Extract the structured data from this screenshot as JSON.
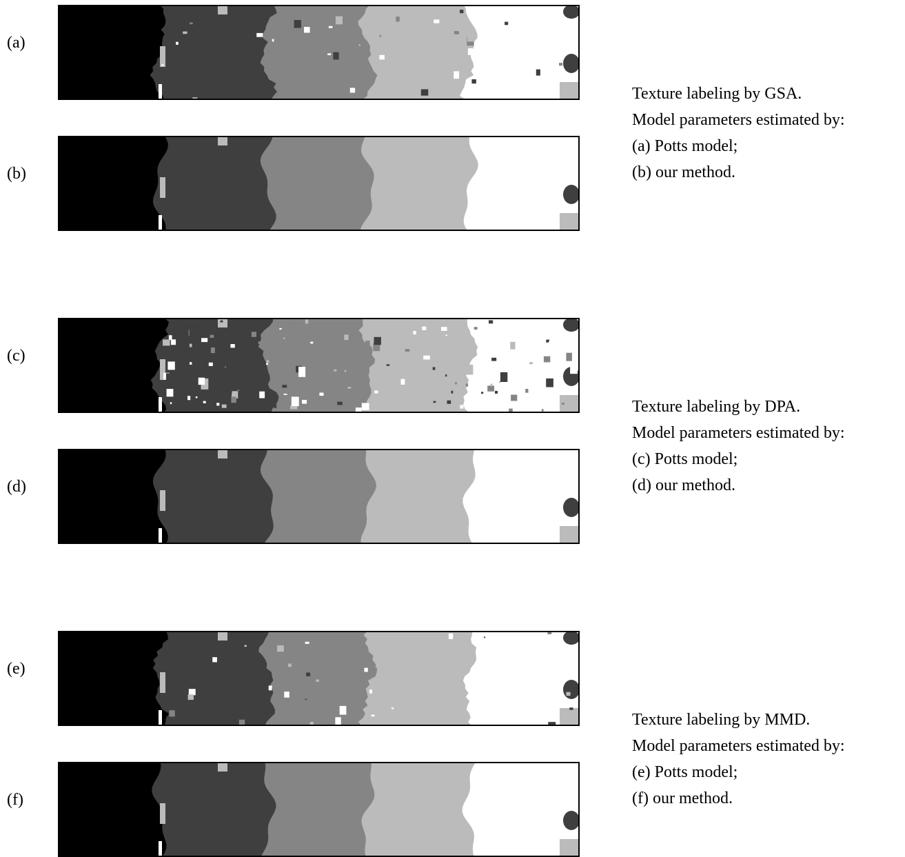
{
  "figure": {
    "groups": [
      {
        "panels": [
          {
            "label": "(a)"
          },
          {
            "label": "(b)"
          }
        ],
        "caption": [
          "Texture labeling by GSA.",
          "Model parameters estimated by:",
          "(a) Potts model;",
          "(b) our method."
        ]
      },
      {
        "panels": [
          {
            "label": "(c)"
          },
          {
            "label": "(d)"
          }
        ],
        "caption": [
          "Texture labeling by DPA.",
          "Model parameters estimated by:",
          "(c) Potts model;",
          "(d) our method."
        ]
      },
      {
        "panels": [
          {
            "label": "(e)"
          },
          {
            "label": "(f)"
          }
        ],
        "caption": [
          "Texture labeling by MMD.",
          "Model parameters estimated by:",
          "(e) Potts model;",
          "(f) our method."
        ]
      }
    ]
  }
}
